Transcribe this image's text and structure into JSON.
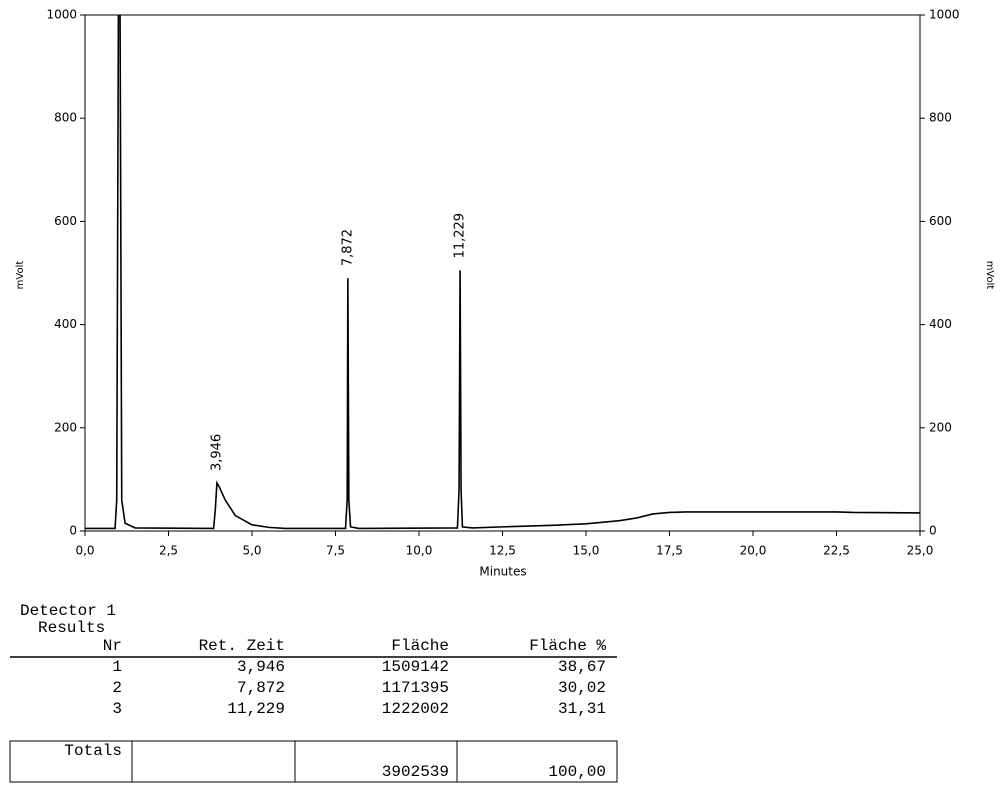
{
  "chart_data": {
    "type": "line",
    "x_label": "Minutes",
    "y_label": "mVolt",
    "xlim": [
      0,
      25
    ],
    "xticks": [
      {
        "value": 0,
        "label": "0,0"
      },
      {
        "value": 2.5,
        "label": "2,5"
      },
      {
        "value": 5,
        "label": "5,0"
      },
      {
        "value": 7.5,
        "label": "7,5"
      },
      {
        "value": 10,
        "label": "10,0"
      },
      {
        "value": 12.5,
        "label": "12,5"
      },
      {
        "value": 15,
        "label": "15,0"
      },
      {
        "value": 17.5,
        "label": "17,5"
      },
      {
        "value": 20,
        "label": "20,0"
      },
      {
        "value": 22.5,
        "label": "22,5"
      },
      {
        "value": 25,
        "label": "25,0"
      }
    ],
    "ylim": [
      0,
      1000
    ],
    "yticks": [
      0,
      200,
      400,
      600,
      800,
      1000
    ],
    "series": [
      {
        "color": "#000000",
        "x": [
          0,
          0.9,
          0.95,
          1.0,
          1.05,
          1.1,
          1.2,
          1.5,
          3.85,
          3.9,
          3.95,
          4.0,
          4.2,
          4.5,
          5.0,
          5.5,
          6.0,
          7.8,
          7.85,
          7.87,
          7.9,
          7.95,
          8.2,
          11.15,
          11.2,
          11.23,
          11.26,
          11.3,
          11.6,
          12.5,
          14,
          15,
          16,
          16.5,
          17,
          17.5,
          18,
          20,
          22.5,
          23,
          25
        ],
        "values": [
          5,
          5,
          60,
          1000,
          1000,
          60,
          15,
          6,
          5,
          40,
          93,
          88,
          60,
          30,
          12,
          7,
          5,
          5,
          60,
          490,
          60,
          8,
          5,
          6,
          80,
          505,
          80,
          8,
          6,
          8,
          11,
          14,
          20,
          25,
          33,
          36,
          37,
          37,
          37,
          36,
          35
        ]
      }
    ],
    "annotations": [
      {
        "x": 3.946,
        "label": "3,946"
      },
      {
        "x": 7.872,
        "label": "7,872"
      },
      {
        "x": 11.229,
        "label": "11,229"
      }
    ]
  },
  "report": {
    "detector": "Detector 1",
    "section": "Results",
    "header": [
      "Nr",
      "Ret. Zeit",
      "Fläche",
      "Fläche %"
    ],
    "rows": [
      [
        "1",
        "3,946",
        "1509142",
        "38,67"
      ],
      [
        "2",
        "7,872",
        "1171395",
        "30,02"
      ],
      [
        "3",
        "11,229",
        "1222002",
        "31,31"
      ]
    ],
    "totals": {
      "label": "Totals",
      "area": "3902539",
      "percent": "100,00"
    }
  }
}
